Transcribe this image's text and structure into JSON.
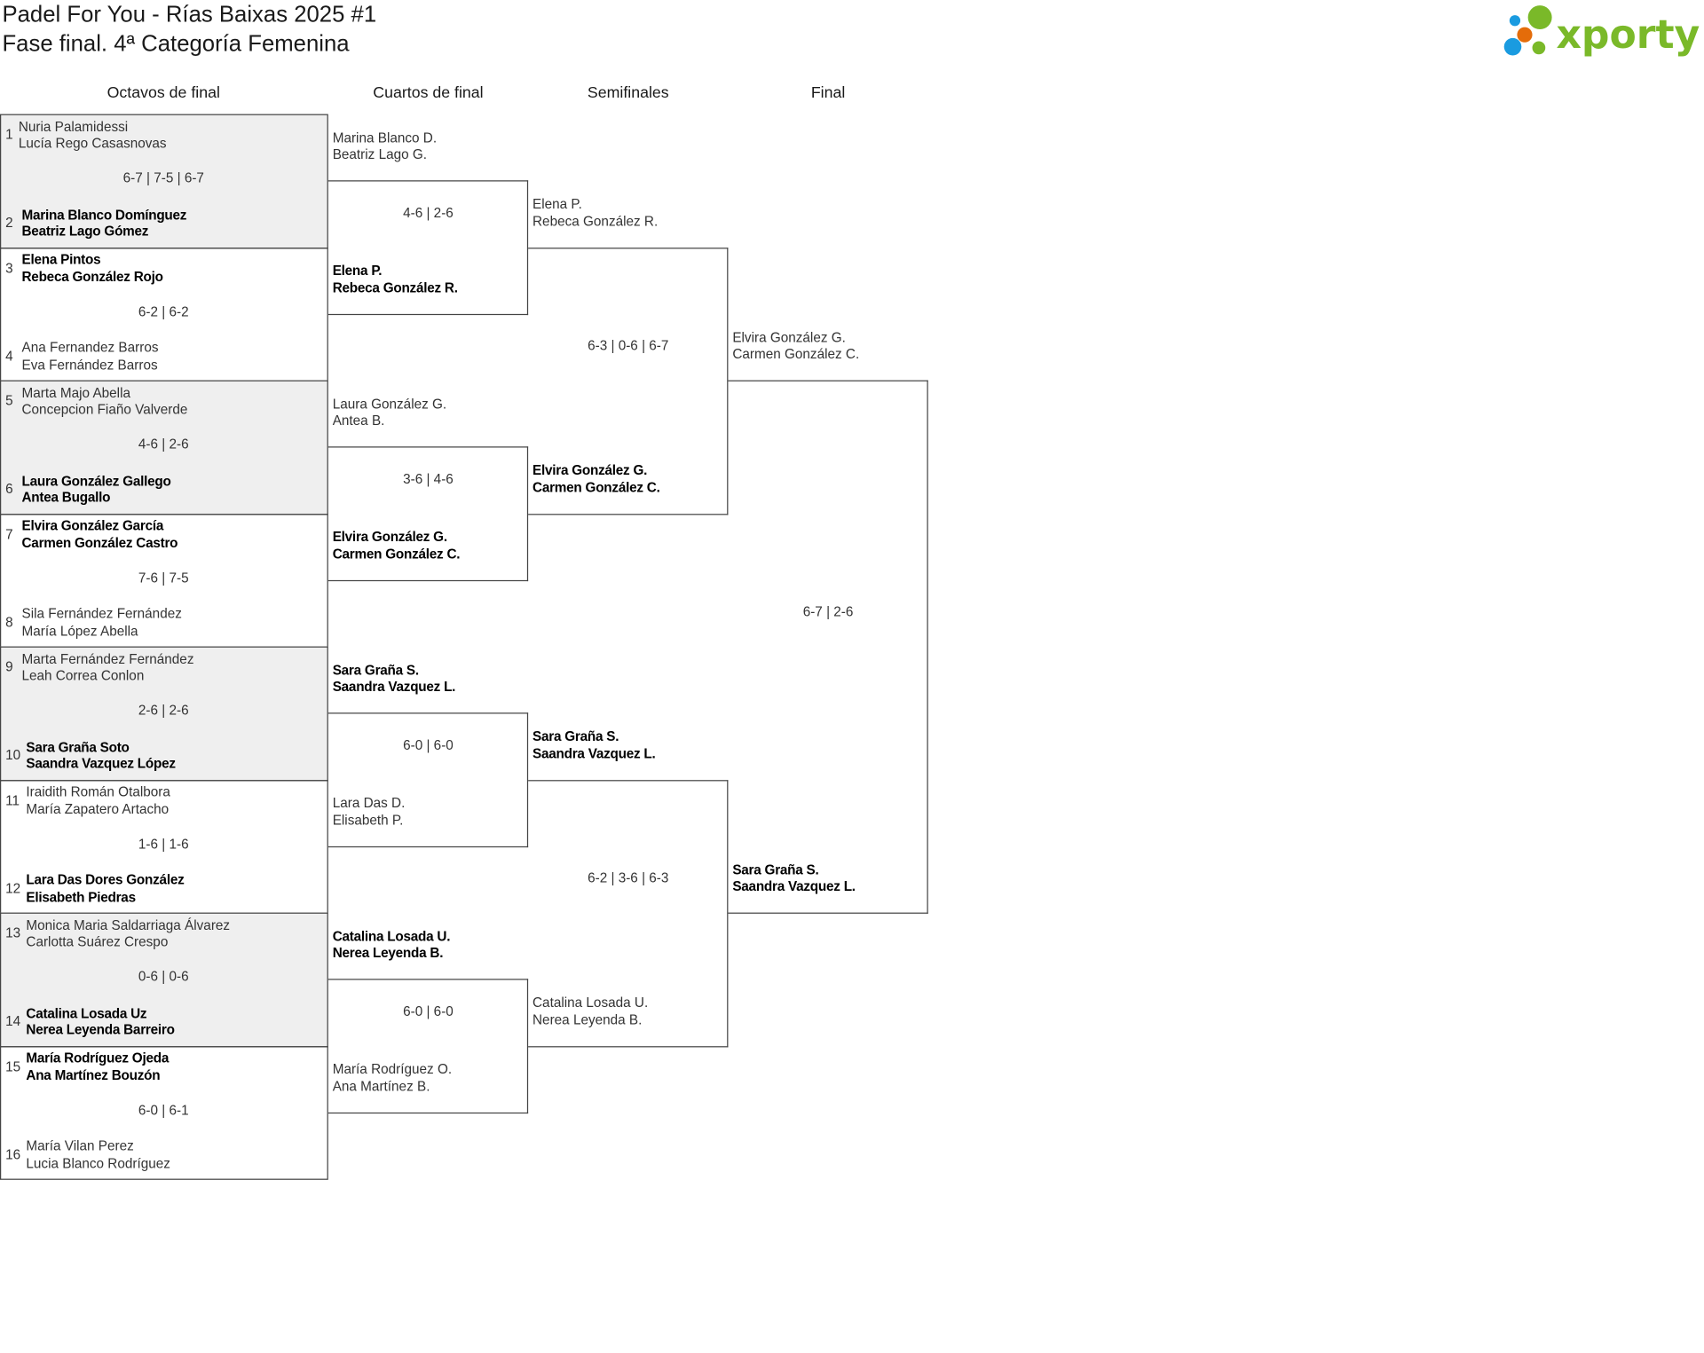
{
  "header": {
    "title_line1": "Padel For You - Rías Baixas 2025 #1",
    "title_line2": "Fase final. 4ª Categoría Femenina",
    "logo_text": "xporty",
    "logo_colors": {
      "green": "#7ab929",
      "blue": "#1a9be0",
      "orange": "#e46c0a"
    }
  },
  "rounds": [
    {
      "label": "Octavos de final",
      "matches": [
        {
          "score": "6-7 | 7-5 | 6-7",
          "teams": [
            {
              "seed": "1",
              "names": [
                "Nuria Palamidessi",
                "Lucía Rego Casasnovas"
              ],
              "winner": false
            },
            {
              "seed": "2",
              "names": [
                "Marina Blanco Domínguez",
                "Beatriz Lago Gómez"
              ],
              "winner": true
            }
          ]
        },
        {
          "score": "6-2 | 6-2",
          "teams": [
            {
              "seed": "3",
              "names": [
                "Elena Pintos",
                "Rebeca González Rojo"
              ],
              "winner": true
            },
            {
              "seed": "4",
              "names": [
                "Ana Fernandez Barros",
                "Eva Fernández Barros"
              ],
              "winner": false
            }
          ]
        },
        {
          "score": "4-6 | 2-6",
          "teams": [
            {
              "seed": "5",
              "names": [
                "Marta Majo Abella",
                "Concepcion Fiaño Valverde"
              ],
              "winner": false
            },
            {
              "seed": "6",
              "names": [
                "Laura González Gallego",
                "Antea Bugallo"
              ],
              "winner": true
            }
          ]
        },
        {
          "score": "7-6 | 7-5",
          "teams": [
            {
              "seed": "7",
              "names": [
                "Elvira González García",
                "Carmen González Castro"
              ],
              "winner": true
            },
            {
              "seed": "8",
              "names": [
                "Sila Fernández Fernández",
                "María López Abella"
              ],
              "winner": false
            }
          ]
        },
        {
          "score": "2-6 | 2-6",
          "teams": [
            {
              "seed": "9",
              "names": [
                "Marta Fernández Fernández",
                "Leah Correa Conlon"
              ],
              "winner": false
            },
            {
              "seed": "10",
              "names": [
                "Sara Graña Soto",
                "Saandra Vazquez López"
              ],
              "winner": true
            }
          ]
        },
        {
          "score": "1-6 | 1-6",
          "teams": [
            {
              "seed": "11",
              "names": [
                "Iraidith Román Otalbora",
                "María Zapatero Artacho"
              ],
              "winner": false
            },
            {
              "seed": "12",
              "names": [
                "Lara Das Dores González",
                "Elisabeth Piedras"
              ],
              "winner": true
            }
          ]
        },
        {
          "score": "0-6 | 0-6",
          "teams": [
            {
              "seed": "13",
              "names": [
                "Monica Maria Saldarriaga Álvarez",
                "Carlotta Suárez Crespo"
              ],
              "winner": false
            },
            {
              "seed": "14",
              "names": [
                "Catalina Losada Uz",
                "Nerea Leyenda Barreiro"
              ],
              "winner": true
            }
          ]
        },
        {
          "score": "6-0 | 6-1",
          "teams": [
            {
              "seed": "15",
              "names": [
                "María Rodríguez Ojeda",
                "Ana Martínez Bouzón"
              ],
              "winner": true
            },
            {
              "seed": "16",
              "names": [
                "María Vilan Perez",
                "Lucia Blanco Rodríguez"
              ],
              "winner": false
            }
          ]
        }
      ]
    },
    {
      "label": "Cuartos de final",
      "matches": [
        {
          "score": "4-6 | 2-6",
          "teams": [
            {
              "names": [
                "Marina Blanco D.",
                "Beatriz Lago G."
              ],
              "winner": false
            },
            {
              "names": [
                "Elena P.",
                "Rebeca González R."
              ],
              "winner": true
            }
          ]
        },
        {
          "score": "3-6 | 4-6",
          "teams": [
            {
              "names": [
                "Laura González G.",
                "Antea B."
              ],
              "winner": false
            },
            {
              "names": [
                "Elvira González G.",
                "Carmen González C."
              ],
              "winner": true
            }
          ]
        },
        {
          "score": "6-0 | 6-0",
          "teams": [
            {
              "names": [
                "Sara Graña S.",
                "Saandra Vazquez L."
              ],
              "winner": true
            },
            {
              "names": [
                "Lara Das D.",
                "Elisabeth P."
              ],
              "winner": false
            }
          ]
        },
        {
          "score": "6-0 | 6-0",
          "teams": [
            {
              "names": [
                "Catalina Losada U.",
                "Nerea Leyenda B."
              ],
              "winner": true
            },
            {
              "names": [
                "María Rodríguez O.",
                "Ana Martínez B."
              ],
              "winner": false
            }
          ]
        }
      ]
    },
    {
      "label": "Semifinales",
      "matches": [
        {
          "score": "6-3 | 0-6 | 6-7",
          "teams": [
            {
              "names": [
                "Elena P.",
                "Rebeca González R."
              ],
              "winner": false
            },
            {
              "names": [
                "Elvira González G.",
                "Carmen González C."
              ],
              "winner": true
            }
          ]
        },
        {
          "score": "6-2 | 3-6 | 6-3",
          "teams": [
            {
              "names": [
                "Sara Graña S.",
                "Saandra Vazquez L."
              ],
              "winner": true
            },
            {
              "names": [
                "Catalina Losada U.",
                "Nerea Leyenda B."
              ],
              "winner": false
            }
          ]
        }
      ]
    },
    {
      "label": "Final",
      "matches": [
        {
          "score": "6-7 | 2-6",
          "teams": [
            {
              "names": [
                "Elvira González G.",
                "Carmen González C."
              ],
              "winner": false
            },
            {
              "names": [
                "Sara Graña S.",
                "Saandra Vazquez L."
              ],
              "winner": true
            }
          ]
        }
      ]
    }
  ]
}
